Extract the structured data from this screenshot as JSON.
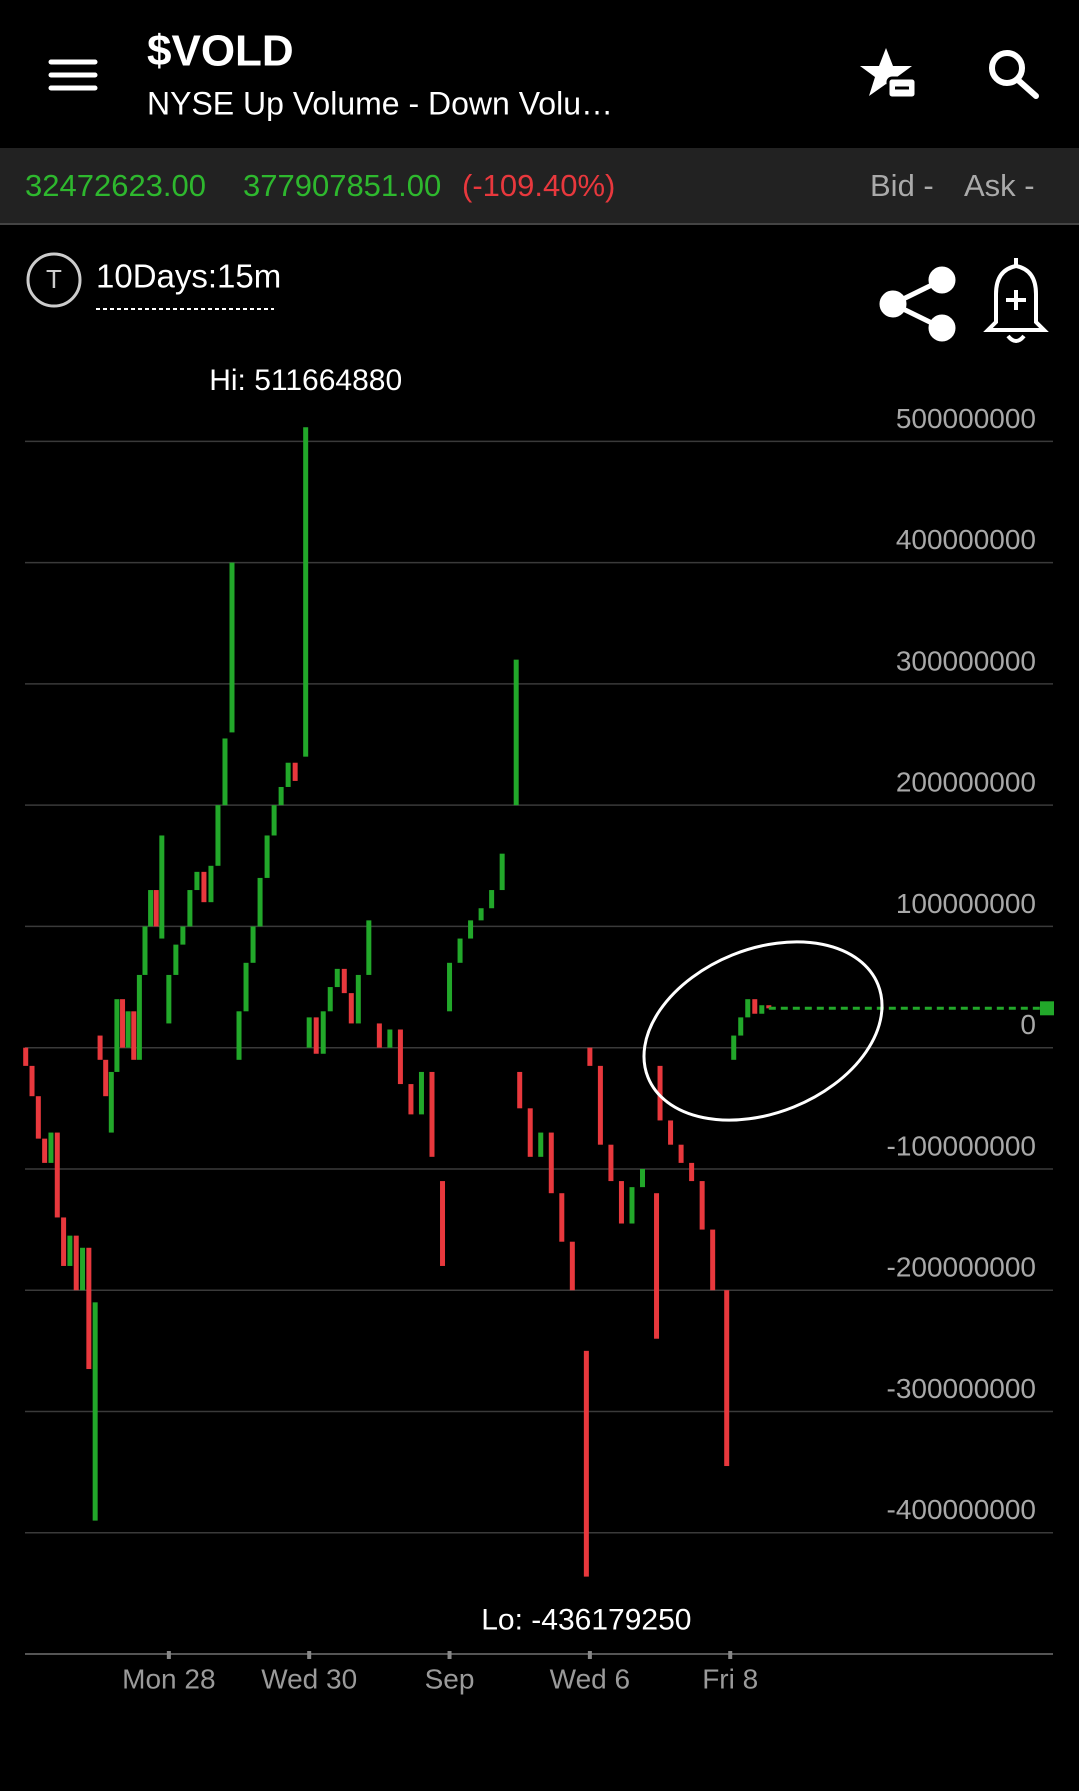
{
  "header": {
    "title": "$VOLD",
    "subtitle": "NYSE Up Volume - Down Volu…"
  },
  "quote": {
    "last": "32472623.00",
    "change": "377907851.00",
    "percent": "(-109.40%)",
    "bid": "Bid -",
    "ask": "Ask -"
  },
  "tool_icon": "T",
  "timeframe": "10Days:15m",
  "chart_data": {
    "type": "candlestick",
    "up_color": "#22a82a",
    "down_color": "#e8383d",
    "grid": true,
    "ylim": [
      -500000000,
      530000000
    ],
    "yticks": [
      -400000000,
      -300000000,
      -200000000,
      -100000000,
      0,
      100000000,
      200000000,
      300000000,
      400000000,
      500000000
    ],
    "xlim": [
      -1.05,
      13.6
    ],
    "xticks": [
      {
        "value": 1,
        "label": "Mon 28"
      },
      {
        "value": 3,
        "label": "Wed 30"
      },
      {
        "value": 5,
        "label": "Sep"
      },
      {
        "value": 7,
        "label": "Wed 6"
      },
      {
        "value": 9,
        "label": "Fri 8"
      }
    ],
    "annotations": [
      "Hi: 511664880",
      "Lo: -436179250"
    ],
    "x": [
      -1.04,
      -0.95,
      -0.86,
      -0.77,
      -0.68,
      -0.59,
      -0.5,
      -0.41,
      -0.32,
      -0.23,
      -0.14,
      -0.05,
      0.02,
      0.1,
      0.18,
      0.26,
      0.34,
      0.42,
      0.5,
      0.58,
      0.66,
      0.74,
      0.82,
      0.9,
      1.0,
      1.1,
      1.2,
      1.3,
      1.4,
      1.5,
      1.6,
      1.7,
      1.8,
      1.9,
      2.0,
      2.1,
      2.2,
      2.3,
      2.4,
      2.5,
      2.6,
      2.7,
      2.8,
      2.95,
      3.0,
      3.1,
      3.2,
      3.3,
      3.4,
      3.5,
      3.6,
      3.7,
      3.85,
      4.0,
      4.15,
      4.3,
      4.45,
      4.6,
      4.75,
      4.9,
      5.0,
      5.15,
      5.3,
      5.45,
      5.6,
      5.75,
      5.95,
      6.0,
      6.15,
      6.3,
      6.45,
      6.6,
      6.75,
      6.95,
      7.0,
      7.15,
      7.3,
      7.45,
      7.6,
      7.75,
      7.95,
      8.0,
      8.15,
      8.3,
      8.45,
      8.6,
      8.75,
      8.95,
      9.05,
      9.15,
      9.25,
      9.35,
      9.45,
      9.55
    ],
    "open": [
      0,
      -15000000,
      -40000000,
      -75000000,
      -95000000,
      -70000000,
      -140000000,
      -180000000,
      -155000000,
      -200000000,
      -165000000,
      -390000000,
      10000000,
      -10000000,
      -70000000,
      -20000000,
      40000000,
      0,
      30000000,
      -10000000,
      60000000,
      100000000,
      130000000,
      90000000,
      20000000,
      60000000,
      85000000,
      100000000,
      130000000,
      145000000,
      120000000,
      150000000,
      200000000,
      260000000,
      -10000000,
      30000000,
      70000000,
      100000000,
      140000000,
      175000000,
      200000000,
      215000000,
      235000000,
      240000000,
      0,
      25000000,
      -5000000,
      30000000,
      50000000,
      65000000,
      45000000,
      20000000,
      60000000,
      20000000,
      0,
      15000000,
      -30000000,
      -55000000,
      -20000000,
      -110000000,
      30000000,
      70000000,
      90000000,
      105000000,
      115000000,
      130000000,
      200000000,
      -20000000,
      -50000000,
      -90000000,
      -70000000,
      -120000000,
      -160000000,
      -250000000,
      0,
      -15000000,
      -80000000,
      -110000000,
      -145000000,
      -115000000,
      -120000000,
      -15000000,
      -60000000,
      -80000000,
      -95000000,
      -110000000,
      -150000000,
      -200000000,
      -10000000,
      10000000,
      25000000,
      40000000,
      28000000,
      35000000
    ],
    "close": [
      -15000000,
      -40000000,
      -75000000,
      -95000000,
      -70000000,
      -140000000,
      -180000000,
      -155000000,
      -200000000,
      -165000000,
      -265000000,
      -210000000,
      -10000000,
      -40000000,
      -20000000,
      40000000,
      0,
      30000000,
      -10000000,
      60000000,
      100000000,
      130000000,
      100000000,
      175000000,
      60000000,
      85000000,
      100000000,
      130000000,
      145000000,
      120000000,
      150000000,
      200000000,
      255000000,
      400000000,
      30000000,
      70000000,
      100000000,
      140000000,
      175000000,
      200000000,
      215000000,
      235000000,
      220000000,
      511664880,
      25000000,
      -5000000,
      30000000,
      50000000,
      65000000,
      45000000,
      20000000,
      60000000,
      105000000,
      0,
      15000000,
      -30000000,
      -55000000,
      -20000000,
      -90000000,
      -180000000,
      70000000,
      90000000,
      105000000,
      115000000,
      130000000,
      160000000,
      320000000,
      -50000000,
      -90000000,
      -70000000,
      -120000000,
      -160000000,
      -200000000,
      -436179250,
      -15000000,
      -80000000,
      -110000000,
      -145000000,
      -115000000,
      -100000000,
      -240000000,
      -60000000,
      -80000000,
      -95000000,
      -110000000,
      -150000000,
      -200000000,
      -345000000,
      10000000,
      25000000,
      40000000,
      28000000,
      35000000,
      32472623
    ]
  }
}
